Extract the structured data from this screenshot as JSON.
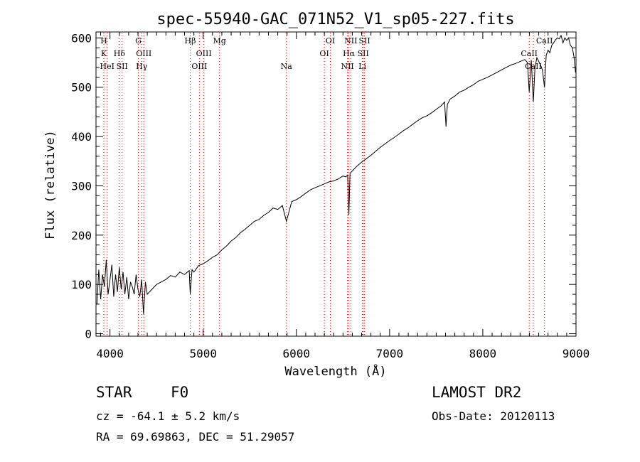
{
  "chart_data": {
    "type": "line",
    "title": "spec-55940-GAC_071N52_V1_sp05-227.fits",
    "xlabel": "Wavelength (Å)",
    "ylabel": "Flux (relative)",
    "xlim": [
      3850,
      9000
    ],
    "ylim": [
      -5,
      612
    ],
    "xticks": [
      4000,
      5000,
      6000,
      7000,
      8000,
      9000
    ],
    "yticks": [
      0,
      100,
      200,
      300,
      400,
      500,
      600
    ],
    "grid": false,
    "line_color": "#000000",
    "marker_color": "#cc0000",
    "series": [
      {
        "x": [
          3860,
          3880,
          3900,
          3920,
          3940,
          3960,
          3980,
          4000,
          4020,
          4040,
          4060,
          4080,
          4100,
          4120,
          4140,
          4160,
          4180,
          4200,
          4220,
          4240,
          4260,
          4280,
          4300,
          4320,
          4340,
          4360,
          4380,
          4400,
          4450,
          4500,
          4550,
          4600,
          4650,
          4700,
          4750,
          4800,
          4850,
          4861,
          4880,
          4900,
          4950,
          5000,
          5050,
          5100,
          5150,
          5200,
          5250,
          5300,
          5350,
          5400,
          5450,
          5500,
          5550,
          5600,
          5650,
          5700,
          5750,
          5800,
          5850,
          5893,
          5950,
          6000,
          6050,
          6100,
          6150,
          6200,
          6250,
          6300,
          6350,
          6400,
          6450,
          6500,
          6530,
          6550,
          6563,
          6575,
          6600,
          6650,
          6700,
          6750,
          6800,
          6850,
          6900,
          6950,
          7000,
          7050,
          7100,
          7150,
          7200,
          7250,
          7300,
          7350,
          7400,
          7450,
          7500,
          7550,
          7590,
          7605,
          7620,
          7650,
          7700,
          7750,
          7800,
          7850,
          7900,
          7950,
          8000,
          8050,
          8100,
          8150,
          8200,
          8250,
          8300,
          8350,
          8400,
          8450,
          8480,
          8498,
          8520,
          8542,
          8560,
          8580,
          8620,
          8640,
          8662,
          8680,
          8700,
          8720,
          8740,
          8760,
          8780,
          8800,
          8820,
          8840,
          8860,
          8880,
          8900,
          8920,
          8940,
          8960,
          8980,
          8995
        ],
        "y": [
          60,
          130,
          70,
          120,
          95,
          150,
          80,
          110,
          140,
          75,
          120,
          85,
          135,
          90,
          125,
          80,
          115,
          70,
          105,
          95,
          80,
          120,
          90,
          75,
          110,
          40,
          105,
          80,
          90,
          100,
          105,
          110,
          118,
          115,
          125,
          120,
          128,
          80,
          130,
          125,
          138,
          142,
          148,
          155,
          160,
          170,
          178,
          188,
          195,
          205,
          212,
          220,
          228,
          232,
          240,
          246,
          255,
          252,
          260,
          228,
          268,
          272,
          278,
          285,
          292,
          296,
          300,
          304,
          308,
          310,
          314,
          320,
          318,
          322,
          240,
          325,
          330,
          340,
          348,
          355,
          362,
          370,
          378,
          385,
          392,
          398,
          405,
          412,
          418,
          425,
          432,
          438,
          442,
          448,
          455,
          462,
          470,
          420,
          465,
          476,
          482,
          490,
          494,
          500,
          505,
          512,
          516,
          520,
          525,
          530,
          535,
          540,
          545,
          548,
          552,
          556,
          550,
          490,
          555,
          470,
          540,
          560,
          545,
          535,
          500,
          565,
          575,
          570,
          585,
          590,
          596,
          600,
          598,
          605,
          590,
          600,
          595,
          600,
          585,
          580,
          560,
          530
        ]
      }
    ],
    "lines": [
      {
        "x": 3934,
        "rows": [
          "H",
          "K"
        ]
      },
      {
        "x": 3970,
        "rows": [
          "",
          "",
          "HeI"
        ]
      },
      {
        "x": 4101,
        "rows": [
          "",
          "Hδ"
        ]
      },
      {
        "x": 4130,
        "rows": [
          "",
          "",
          "SII"
        ]
      },
      {
        "x": 4304,
        "rows": [
          "G"
        ]
      },
      {
        "x": 4340,
        "rows": [
          "",
          "",
          "Hγ"
        ]
      },
      {
        "x": 4363,
        "rows": [
          "",
          "OIII"
        ]
      },
      {
        "x": 4861,
        "rows": [
          "Hβ"
        ]
      },
      {
        "x": 4959,
        "rows": [
          "",
          "",
          "OIII"
        ]
      },
      {
        "x": 5007,
        "rows": [
          "",
          "OIII"
        ]
      },
      {
        "x": 5175,
        "rows": [
          "Mg"
        ]
      },
      {
        "x": 5893,
        "rows": [
          "",
          "",
          "Na"
        ]
      },
      {
        "x": 6300,
        "rows": [
          "",
          "OI"
        ]
      },
      {
        "x": 6364,
        "rows": [
          "OI"
        ]
      },
      {
        "x": 6548,
        "rows": [
          "",
          "",
          "NII"
        ]
      },
      {
        "x": 6563,
        "rows": [
          "",
          "Hα"
        ]
      },
      {
        "x": 6584,
        "rows": [
          "NII"
        ]
      },
      {
        "x": 6708,
        "rows": [
          "",
          "",
          "Li"
        ]
      },
      {
        "x": 6717,
        "rows": [
          "",
          "SII"
        ]
      },
      {
        "x": 6731,
        "rows": [
          "SII"
        ]
      },
      {
        "x": 8498,
        "rows": [
          "",
          "CaII"
        ]
      },
      {
        "x": 8542,
        "rows": [
          "",
          "",
          "CaII"
        ]
      },
      {
        "x": 8662,
        "rows": [
          "CaII"
        ]
      }
    ]
  },
  "info": {
    "class": "STAR",
    "subclass": "F0",
    "release": "LAMOST DR2",
    "cz": "cz = -64.1 ± 5.2 km/s",
    "obs_date": "Obs-Date: 20120113",
    "coords": "RA =  69.69863, DEC =  51.29057"
  }
}
